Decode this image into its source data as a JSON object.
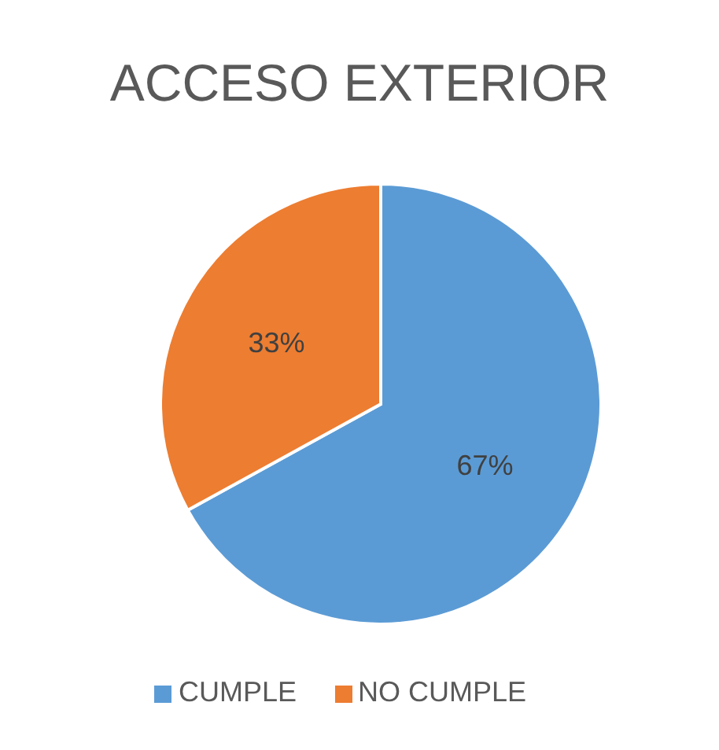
{
  "chart_data": {
    "type": "pie",
    "title": "ACCESO EXTERIOR",
    "categories": [
      "CUMPLE",
      "NO CUMPLE"
    ],
    "values": [
      67,
      33
    ],
    "value_labels": [
      "67%",
      "33%"
    ],
    "colors": [
      "#5b9bd5",
      "#ed7d31"
    ],
    "legend": "bottom"
  }
}
